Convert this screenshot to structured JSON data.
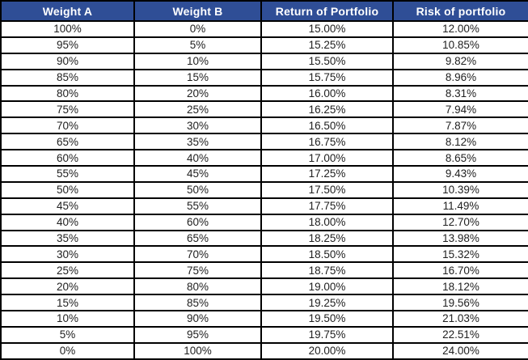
{
  "colors": {
    "header_bg": "#2F4E96",
    "header_text": "#FFFFFF",
    "border": "#000000",
    "cell_text": "#212121"
  },
  "chart_data": {
    "type": "table",
    "title": "",
    "columns": [
      "Weight A",
      "Weight B",
      "Return of Portfolio",
      "Risk of portfolio"
    ],
    "rows": [
      [
        "100%",
        "0%",
        "15.00%",
        "12.00%"
      ],
      [
        "95%",
        "5%",
        "15.25%",
        "10.85%"
      ],
      [
        "90%",
        "10%",
        "15.50%",
        "9.82%"
      ],
      [
        "85%",
        "15%",
        "15.75%",
        "8.96%"
      ],
      [
        "80%",
        "20%",
        "16.00%",
        "8.31%"
      ],
      [
        "75%",
        "25%",
        "16.25%",
        "7.94%"
      ],
      [
        "70%",
        "30%",
        "16.50%",
        "7.87%"
      ],
      [
        "65%",
        "35%",
        "16.75%",
        "8.12%"
      ],
      [
        "60%",
        "40%",
        "17.00%",
        "8.65%"
      ],
      [
        "55%",
        "45%",
        "17.25%",
        "9.43%"
      ],
      [
        "50%",
        "50%",
        "17.50%",
        "10.39%"
      ],
      [
        "45%",
        "55%",
        "17.75%",
        "11.49%"
      ],
      [
        "40%",
        "60%",
        "18.00%",
        "12.70%"
      ],
      [
        "35%",
        "65%",
        "18.25%",
        "13.98%"
      ],
      [
        "30%",
        "70%",
        "18.50%",
        "15.32%"
      ],
      [
        "25%",
        "75%",
        "18.75%",
        "16.70%"
      ],
      [
        "20%",
        "80%",
        "19.00%",
        "18.12%"
      ],
      [
        "15%",
        "85%",
        "19.25%",
        "19.56%"
      ],
      [
        "10%",
        "90%",
        "19.50%",
        "21.03%"
      ],
      [
        "5%",
        "95%",
        "19.75%",
        "22.51%"
      ],
      [
        "0%",
        "100%",
        "20.00%",
        "24.00%"
      ]
    ]
  }
}
